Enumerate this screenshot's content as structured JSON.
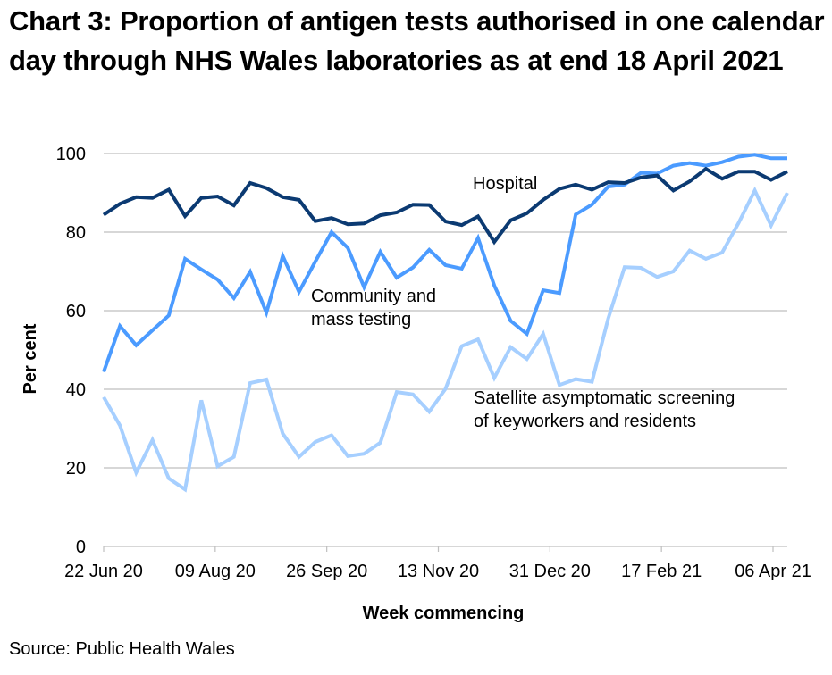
{
  "title": "Chart 3: Proportion of antigen tests authorised in one calendar day through NHS Wales laboratories as at end 18 April 2021",
  "source": "Source: Public Health Wales",
  "chart_data": {
    "type": "line",
    "title": "Chart 3: Proportion of antigen tests authorised in one calendar day through NHS Wales laboratories as at end 18 April 2021",
    "xlabel": "Week commencing",
    "ylabel": "Per cent",
    "ylim": [
      0,
      100
    ],
    "yticks": [
      "0",
      "20",
      "40",
      "60",
      "80",
      "100"
    ],
    "ytick_values": [
      0,
      20,
      40,
      60,
      80,
      100
    ],
    "grid": true,
    "legend": "inline-labels",
    "xtick_labels": [
      "22 Jun 20",
      "09 Aug 20",
      "26 Sep 20",
      "13 Nov 20",
      "31 Dec 20",
      "17 Feb 21",
      "06 Apr 21"
    ],
    "xtick_index": [
      0,
      7,
      14,
      21,
      28,
      35,
      42
    ],
    "n_points": 43,
    "series": [
      {
        "name": "Hospital",
        "label": "Hospital",
        "color": "#0B3A72",
        "values": [
          84.4,
          87.2,
          88.9,
          88.7,
          90.8,
          84.1,
          88.7,
          89.1,
          86.8,
          92.5,
          91.2,
          88.9,
          88.2,
          82.8,
          83.6,
          82.0,
          82.2,
          84.3,
          85.0,
          87.0,
          86.9,
          82.7,
          81.8,
          84.0,
          77.5,
          83.0,
          84.8,
          88.2,
          91.0,
          92.1,
          90.8,
          92.7,
          92.5,
          93.9,
          94.4,
          90.6,
          92.9,
          96.1,
          93.6,
          95.4,
          95.4,
          93.3,
          95.4
        ]
      },
      {
        "name": "Community and mass testing",
        "label_lines": [
          "Community and",
          "mass testing"
        ],
        "color": "#4B9BFF",
        "values": [
          44.4,
          56.1,
          51.2,
          55.0,
          58.8,
          73.2,
          70.5,
          67.9,
          63.2,
          69.9,
          59.5,
          73.9,
          64.8,
          72.5,
          80.0,
          76.0,
          66.0,
          75.0,
          68.4,
          71.0,
          75.5,
          71.6,
          70.7,
          78.5,
          66.4,
          57.4,
          54.1,
          65.2,
          64.5,
          84.5,
          87.0,
          91.6,
          92.1,
          95.1,
          94.9,
          96.9,
          97.6,
          96.9,
          97.8,
          99.2,
          99.7,
          98.8,
          98.8
        ]
      },
      {
        "name": "Satellite asymptomatic screening of keyworkers and residents",
        "label_lines": [
          "Satellite asymptomatic screening",
          "of keyworkers and residents"
        ],
        "color": "#A6CFFF",
        "values": [
          38.0,
          30.8,
          18.8,
          27.1,
          17.3,
          14.5,
          37.2,
          20.4,
          22.8,
          41.6,
          42.5,
          28.7,
          22.8,
          26.6,
          28.3,
          23.0,
          23.6,
          26.4,
          39.3,
          38.7,
          34.3,
          40.1,
          51.0,
          52.7,
          42.9,
          50.7,
          47.7,
          54.1,
          41.1,
          42.6,
          41.9,
          58.0,
          71.1,
          70.9,
          68.6,
          70.0,
          75.3,
          73.2,
          74.8,
          82.3,
          90.6,
          81.7,
          90.0
        ]
      }
    ]
  }
}
